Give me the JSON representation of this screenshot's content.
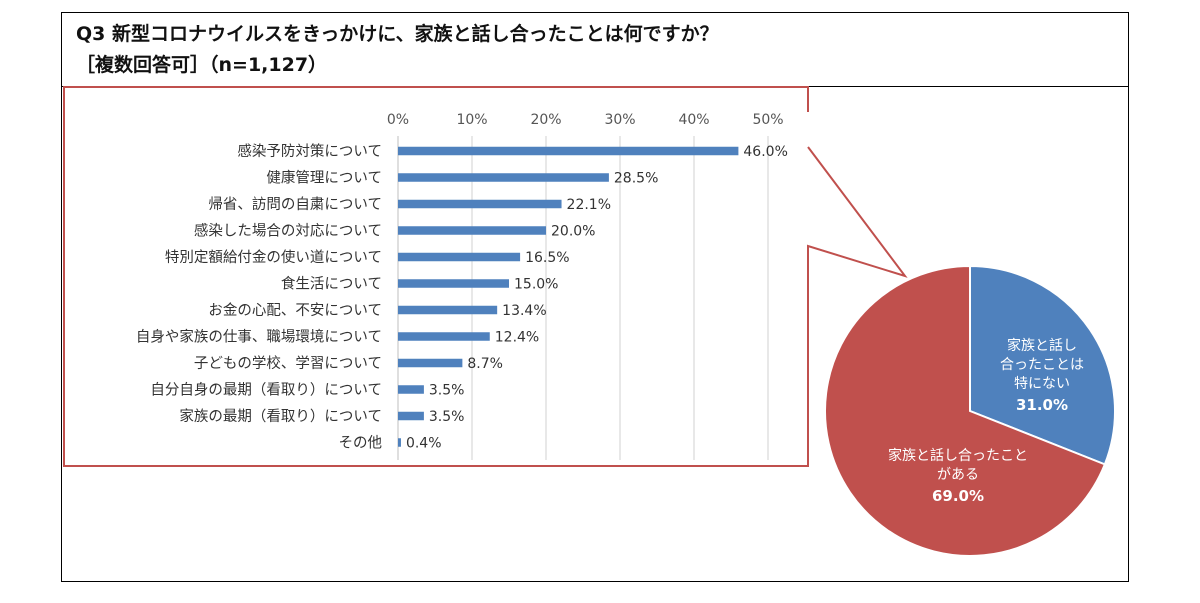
{
  "title": "Q3 新型コロナウイルスをきっかけに、家族と話し合ったことは何ですか？",
  "subtitle": "［複数回答可］（n=1,127）",
  "colors": {
    "bar": "#4f81bd",
    "pie_blue": "#4f81bd",
    "pie_red": "#c0504d",
    "callout": "#c0504d",
    "grid": "#d0d0d0"
  },
  "chart_data": [
    {
      "type": "bar",
      "orientation": "horizontal",
      "categories": [
        "感染予防対策について",
        "健康管理について",
        "帰省、訪問の自粛について",
        "感染した場合の対応について",
        "特別定額給付金の使い道について",
        "食生活について",
        "お金の心配、不安について",
        "自身や家族の仕事、職場環境について",
        "子どもの学校、学習について",
        "自分自身の最期（看取り）について",
        "家族の最期（看取り）について",
        "その他"
      ],
      "values": [
        46.0,
        28.5,
        22.1,
        20.0,
        16.5,
        15.0,
        13.4,
        12.4,
        8.7,
        3.5,
        3.5,
        0.4
      ],
      "value_labels": [
        "46.0%",
        "28.5%",
        "22.1%",
        "20.0%",
        "16.5%",
        "15.0%",
        "13.4%",
        "12.4%",
        "8.7%",
        "3.5%",
        "3.5%",
        "0.4%"
      ],
      "xticks": [
        "0%",
        "10%",
        "20%",
        "30%",
        "40%",
        "50%"
      ],
      "xtick_values": [
        0,
        10,
        20,
        30,
        40,
        50
      ],
      "xlim": [
        0,
        50
      ],
      "xaxis_position": "top",
      "grid": true
    },
    {
      "type": "pie",
      "slices": [
        {
          "label_lines": [
            "家族と話し",
            "合ったことは",
            "特にない"
          ],
          "value": 31.0,
          "value_label": "31.0%",
          "color": "#4f81bd"
        },
        {
          "label_lines": [
            "家族と話し合ったこと",
            "がある"
          ],
          "value": 69.0,
          "value_label": "69.0%",
          "color": "#c0504d"
        }
      ]
    }
  ]
}
